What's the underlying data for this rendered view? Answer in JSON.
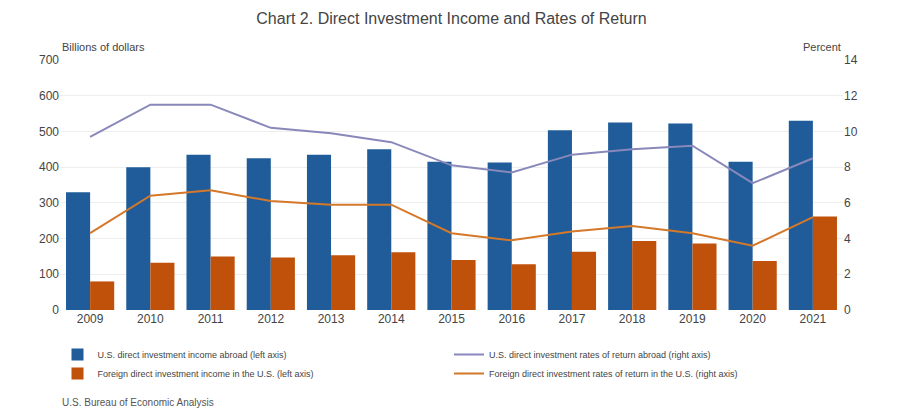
{
  "chart_data": {
    "type": "bar",
    "title": "Chart 2. Direct Investment Income and Rates of Return",
    "ylabel": "Billions of dollars",
    "y2label": "Percent",
    "annotations": [
      "U.S. Bureau of Economic Analysis"
    ],
    "categories": [
      "2009",
      "2010",
      "2011",
      "2012",
      "2013",
      "2014",
      "2015",
      "2016",
      "2017",
      "2018",
      "2019",
      "2020",
      "2021"
    ],
    "series": [
      {
        "name": "U.S. direct investment income abroad (left axis)",
        "type": "bar",
        "color": "#1F5C99",
        "values": [
          330,
          400,
          435,
          425,
          435,
          450,
          415,
          413,
          503,
          525,
          522,
          415,
          530
        ]
      },
      {
        "name": "U.S. direct investment rates of return abroad (right axis)",
        "type": "line",
        "axis": "y2",
        "color": "#8888BB",
        "values": [
          9.7,
          11.5,
          11.5,
          10.2,
          9.9,
          9.4,
          8.1,
          7.7,
          8.7,
          9.0,
          9.2,
          7.1,
          8.5
        ]
      },
      {
        "name": "Foreign direct investment income in the U.S. (left axis)",
        "type": "bar",
        "color": "#C0510A",
        "values": [
          80,
          132,
          150,
          147,
          153,
          162,
          140,
          128,
          163,
          193,
          186,
          137,
          262
        ]
      },
      {
        "name": "Foreign direct investment rates of return in the U.S. (right axis)",
        "type": "line",
        "axis": "y2",
        "color": "#D4782A",
        "values": [
          4.3,
          6.4,
          6.7,
          6.1,
          5.9,
          5.9,
          4.3,
          3.9,
          4.4,
          4.7,
          4.3,
          3.6,
          5.2
        ]
      }
    ],
    "ylim": [
      0,
      700
    ],
    "yticks": [
      0,
      100,
      200,
      300,
      400,
      500,
      600,
      700
    ],
    "y2lim": [
      0,
      14
    ],
    "y2ticks": [
      0,
      2,
      4,
      6,
      8,
      10,
      12,
      14
    ],
    "grid": true,
    "legend": "bottom"
  }
}
